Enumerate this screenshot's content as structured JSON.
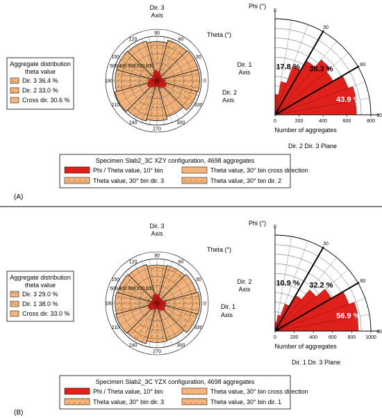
{
  "panels": [
    {
      "panel_label": "(A)",
      "polar": {
        "axis_top": [
          "Dir. 3",
          "Axis"
        ],
        "axis_right": [
          "Dir. 2",
          "Axis"
        ],
        "theta_label": "Theta (°)",
        "angle_ticks": [
          "0",
          "30",
          "60",
          "90",
          "120",
          "150",
          "180",
          "210",
          "240",
          "270",
          "300",
          "330"
        ],
        "radial_ticks": [
          "500",
          "400",
          "300",
          "200",
          "100"
        ]
      },
      "legend_left": {
        "title": [
          "Aggregate distribution",
          "theta value"
        ],
        "items": [
          "Dir. 3 36.4 %",
          "Dir. 2 33.0 %",
          "Cross dir. 30.6 %"
        ]
      },
      "quarter": {
        "phi_label": "Phi (°)",
        "axis_label": [
          "Dir. 1",
          "Axis"
        ],
        "x_label": "Number of aggregates",
        "plane_label": "Dir. 2 Dir. 3 Plane",
        "x_ticks": [
          "0",
          "200",
          "400",
          "600",
          "800"
        ],
        "angle_ticks": [
          "0",
          "30",
          "60",
          "90"
        ],
        "percents": [
          "17.8 %",
          "38.3 %",
          "43.9 %"
        ]
      },
      "legend_bottom": {
        "title": "Specimen Slab2_3C XZY configuration, 4698 aggregates",
        "items": [
          "Phi / Theta value, 10° bin",
          "Theta value, 30° bin cross direction",
          "Theta value, 30° bin dir. 3",
          "Theta value, 30° bin dir. 2"
        ]
      }
    },
    {
      "panel_label": "(B)",
      "polar": {
        "axis_top": [
          "Dir. 3",
          "Axis"
        ],
        "axis_right": [
          "Dir. 1",
          "Axis"
        ],
        "theta_label": "Theta (°)",
        "angle_ticks": [
          "0",
          "30",
          "60",
          "90",
          "120",
          "150",
          "180",
          "210",
          "240",
          "270",
          "300",
          "330"
        ],
        "radial_ticks": [
          "500",
          "400",
          "300",
          "200",
          "100"
        ]
      },
      "legend_left": {
        "title": [
          "Aggregate distribution",
          "theta value"
        ],
        "items": [
          "Dir. 3 29.0 %",
          "Dir. 1 38.0 %",
          "Cross dir. 33.0 %"
        ]
      },
      "quarter": {
        "phi_label": "Phi (°)",
        "axis_label": [
          "Dir. 2",
          "Axis"
        ],
        "x_label": "Number of aggregates",
        "plane_label": "Dir. 1 Dir. 3 Plane",
        "x_ticks": [
          "0",
          "200",
          "400",
          "600",
          "800",
          "1000"
        ],
        "angle_ticks": [
          "0",
          "30",
          "60",
          "90"
        ],
        "percents": [
          "10.9 %",
          "32.2 %",
          "56.9 %"
        ]
      },
      "legend_bottom": {
        "title": "Specimen Slab2_3C YZX configuration, 4698 aggregates",
        "items": [
          "Phi / Theta value, 10° bin",
          "Theta value, 30° bin cross direction",
          "Theta value, 30° bin dir. 3",
          "Theta value, 30° bin dir. 1"
        ]
      }
    }
  ],
  "colors": {
    "red": "#e0201b",
    "orange": "#f4b37a",
    "orange_dark": "#c8732c",
    "grid": "#555555"
  },
  "chart_data": [
    {
      "type": "polar-bar",
      "panel": "(A)",
      "sub": "theta rose",
      "radial_range": [
        0,
        500
      ],
      "theta_bins_30deg": {
        "angles": [
          0,
          30,
          60,
          90,
          120,
          150,
          180,
          210,
          240,
          270,
          300,
          330
        ],
        "values": [
          480,
          480,
          470,
          440,
          460,
          470,
          470,
          490,
          470,
          450,
          420,
          470
        ]
      },
      "theta_bins_10deg_red": {
        "values": [
          90,
          80,
          70,
          60,
          60,
          70,
          80,
          90,
          100,
          110,
          120,
          100,
          80,
          70,
          60,
          60,
          70,
          80,
          90,
          100,
          110,
          120,
          110,
          90,
          80,
          70,
          60,
          60,
          70,
          80,
          90,
          100,
          110,
          120,
          110,
          90
        ]
      },
      "distribution": {
        "Dir. 3": 36.4,
        "Dir. 2": 33.0,
        "Cross dir.": 30.6
      }
    },
    {
      "type": "polar-bar",
      "panel": "(A)",
      "sub": "phi quarter",
      "x_range": [
        0,
        800
      ],
      "phi_bins_10deg": {
        "angles": [
          0,
          10,
          20,
          30,
          40,
          50,
          60,
          70,
          80
        ],
        "values": [
          680,
          690,
          650,
          560,
          600,
          520,
          430,
          280,
          170
        ]
      },
      "distribution": {
        "0-30": 43.9,
        "30-60": 38.3,
        "60-90": 17.8
      }
    },
    {
      "type": "polar-bar",
      "panel": "(B)",
      "sub": "theta rose",
      "radial_range": [
        0,
        500
      ],
      "theta_bins_30deg": {
        "angles": [
          0,
          30,
          60,
          90,
          120,
          150,
          180,
          210,
          240,
          270,
          300,
          330
        ],
        "values": [
          480,
          460,
          440,
          430,
          450,
          460,
          470,
          480,
          470,
          440,
          430,
          470
        ]
      },
      "theta_bins_10deg_red": {
        "values": [
          100,
          90,
          80,
          70,
          60,
          60,
          70,
          80,
          90,
          100,
          110,
          100,
          90,
          80,
          70,
          60,
          60,
          70,
          80,
          90,
          100,
          110,
          100,
          90,
          80,
          70,
          60,
          60,
          70,
          80,
          90,
          100,
          110,
          100,
          90,
          90
        ]
      },
      "distribution": {
        "Dir. 3": 29.0,
        "Dir. 1": 38.0,
        "Cross dir.": 33.0
      }
    },
    {
      "type": "polar-bar",
      "panel": "(B)",
      "sub": "phi quarter",
      "x_range": [
        0,
        1000
      ],
      "phi_bins_10deg": {
        "angles": [
          0,
          10,
          20,
          30,
          40,
          50,
          60,
          70,
          80
        ],
        "values": [
          870,
          880,
          820,
          680,
          560,
          430,
          300,
          170,
          90
        ]
      },
      "distribution": {
        "0-30": 56.9,
        "30-60": 32.2,
        "60-90": 10.9
      }
    }
  ]
}
